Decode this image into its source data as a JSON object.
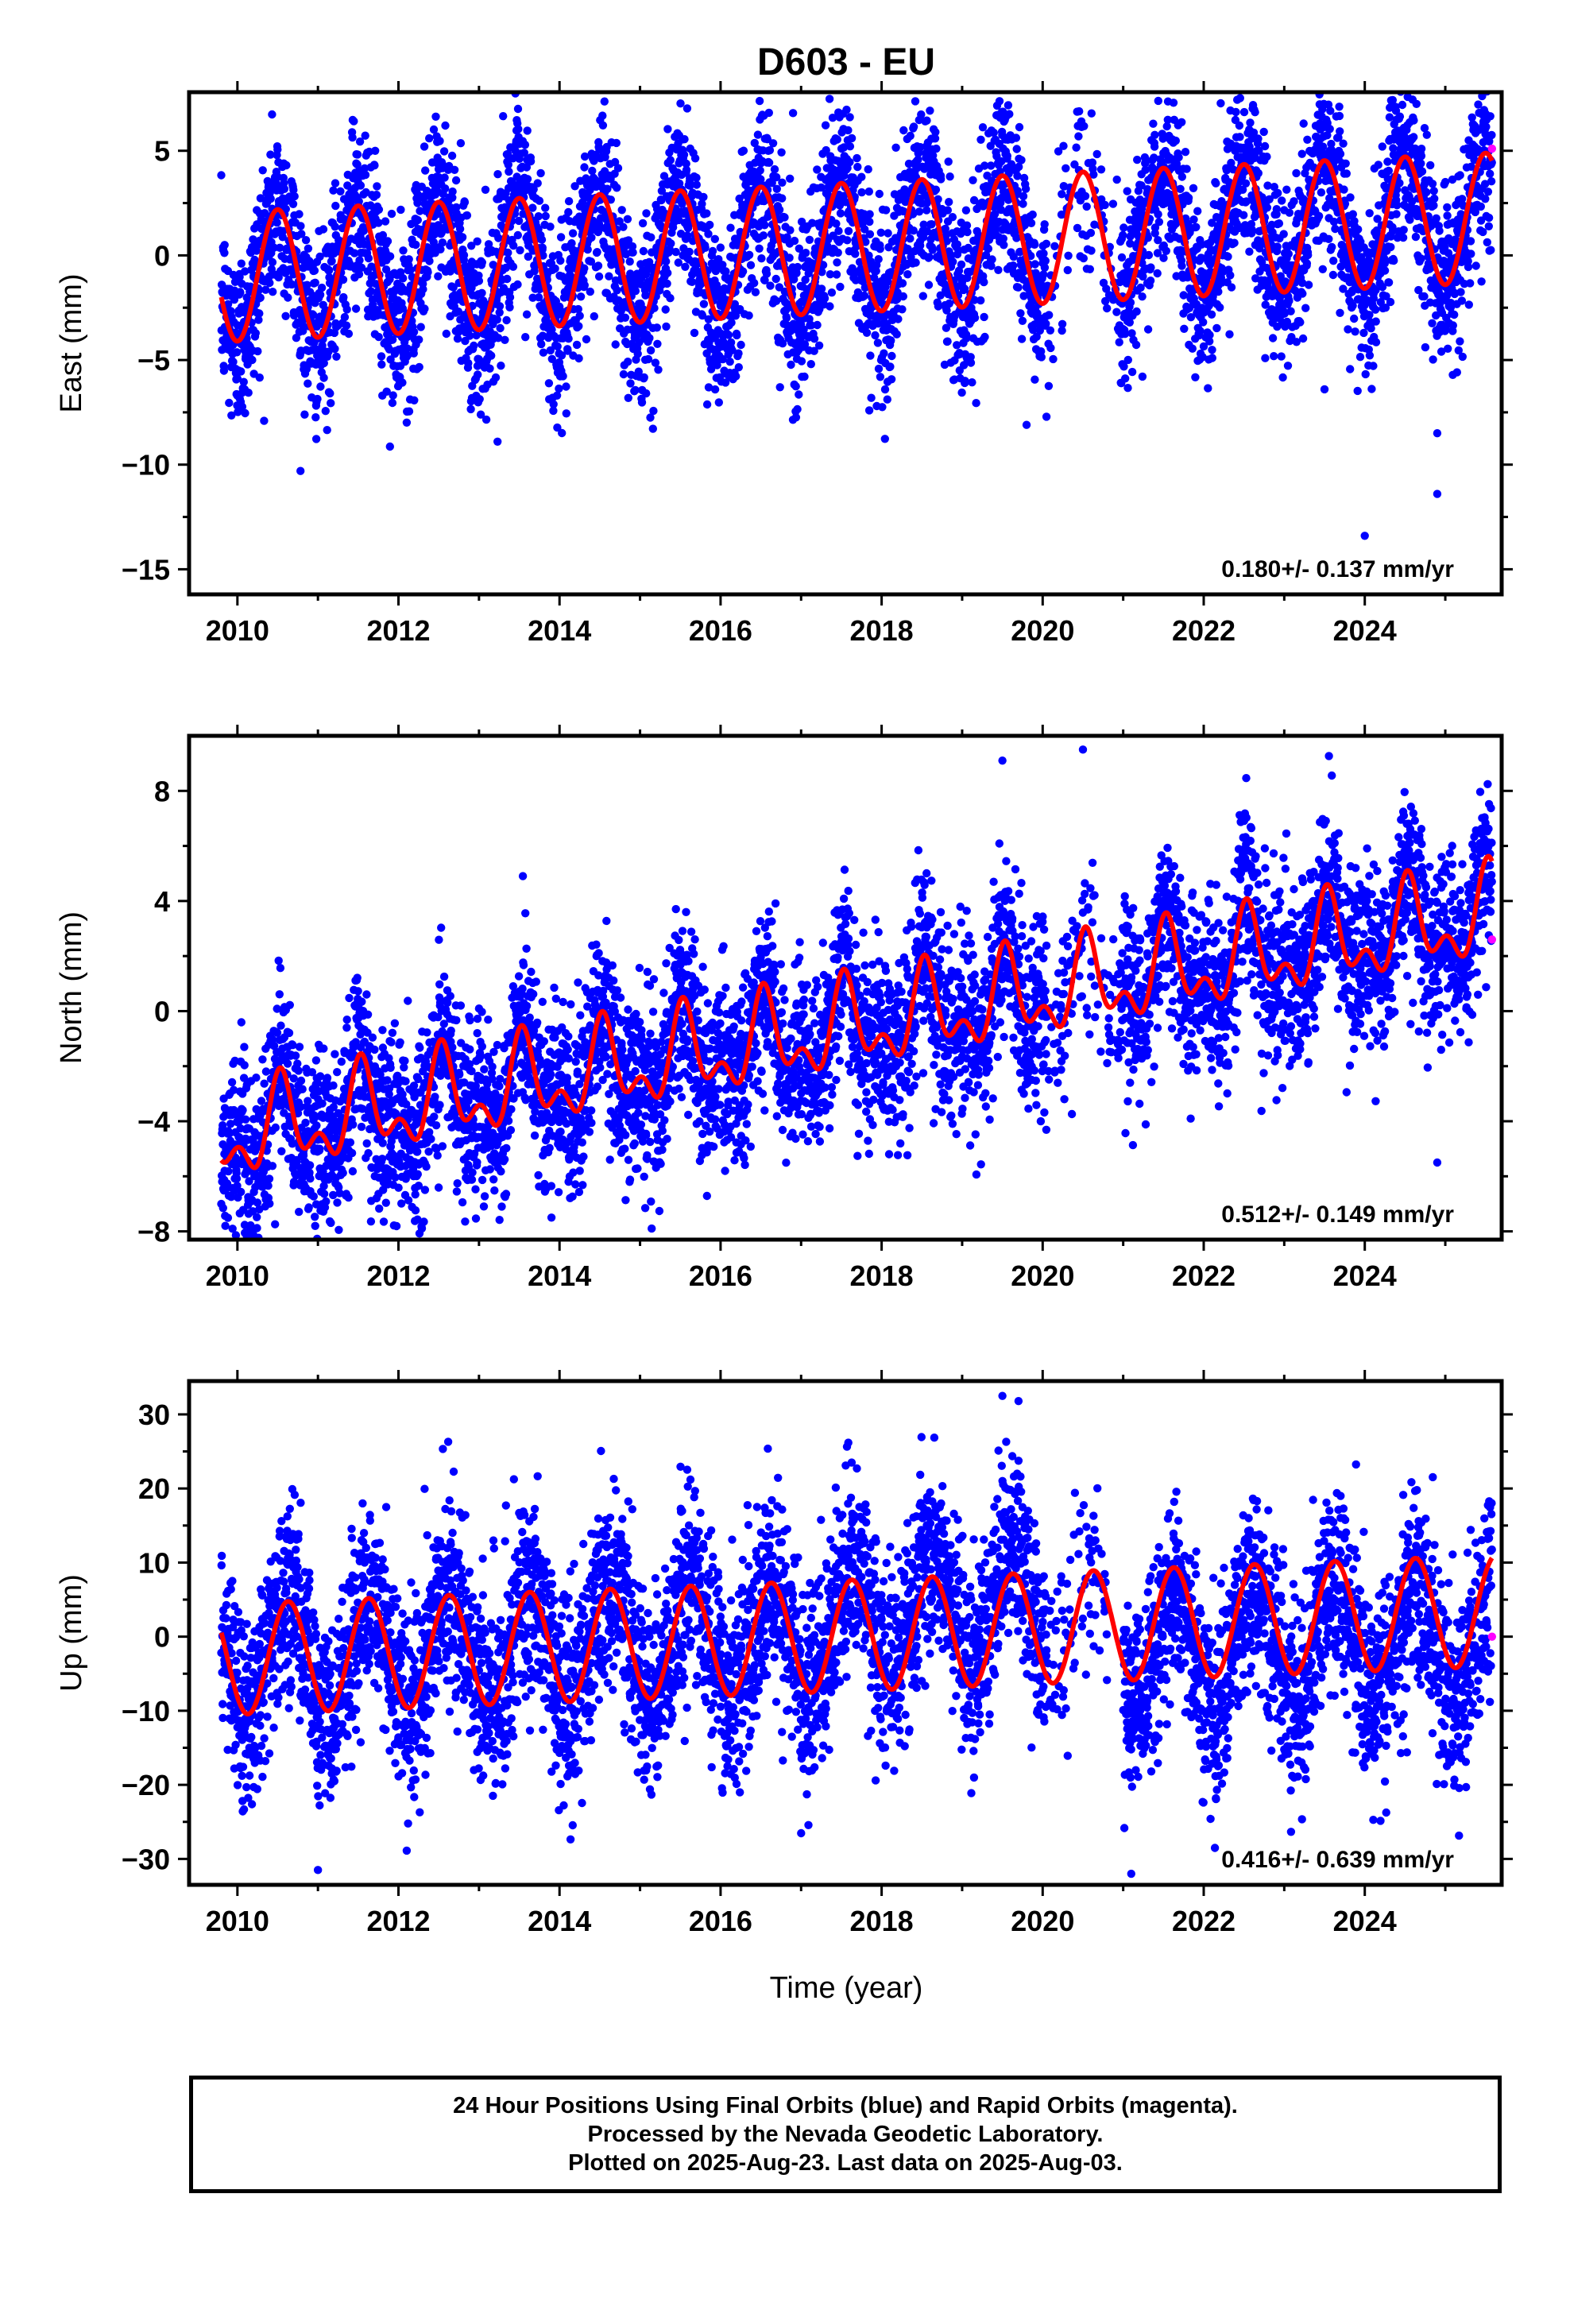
{
  "title": "D603 - EU",
  "xlabel": "Time (year)",
  "colors": {
    "final_orbits": "#0000ff",
    "rapid_orbits": "#ff00ff",
    "model_fit": "#ff0000",
    "axes": "#000000"
  },
  "footer": {
    "line1": "24 Hour Positions Using Final Orbits (blue) and Rapid Orbits (magenta).",
    "line2": "Processed by the Nevada Geodetic Laboratory.",
    "line3": "Plotted on 2025-Aug-23. Last data on 2025-Aug-03."
  },
  "chart_data": [
    {
      "type": "scatter",
      "title": "D603 - EU",
      "ylabel": "East (mm)",
      "xlabel": "",
      "xlim": [
        2009.4,
        2025.7
      ],
      "ylim": [
        -16.2,
        7.8
      ],
      "xticks": [
        "2010",
        "2012",
        "2014",
        "2016",
        "2018",
        "2020",
        "2022",
        "2024"
      ],
      "yticks": [
        "5",
        "0",
        "−5",
        "−10",
        "−15"
      ],
      "ytick_values": [
        5,
        0,
        -5,
        -10,
        -15
      ],
      "velocity_label": "0.180+/- 0.137 mm/yr",
      "grid": false,
      "series": [
        {
          "kind": "final_orbits",
          "note_points": "daily solutions approx 2009.8–2025.6, scatter ±2 mm around seasonal model"
        },
        {
          "kind": "rapid_orbits",
          "points": [
            [
              2025.58,
              5.1
            ]
          ]
        }
      ],
      "model": {
        "trend_mm_per_yr": 0.18,
        "offset_at_2010": -1.0,
        "annual_amplitude": 3.1,
        "start": 2009.8,
        "end": 2025.58
      },
      "outliers": [
        [
          2010.0,
          -6.7
        ],
        [
          2011.8,
          -6.7
        ],
        [
          2016.9,
          6.8
        ],
        [
          2019.8,
          -8.1
        ],
        [
          2023.5,
          -6.4
        ],
        [
          2024.0,
          -13.4
        ],
        [
          2024.9,
          -11.4
        ],
        [
          2024.9,
          -8.5
        ]
      ]
    },
    {
      "type": "scatter",
      "ylabel": "North (mm)",
      "xlabel": "",
      "xlim": [
        2009.4,
        2025.7
      ],
      "ylim": [
        -8.3,
        10.0
      ],
      "xticks": [
        "2010",
        "2012",
        "2014",
        "2016",
        "2018",
        "2020",
        "2022",
        "2024"
      ],
      "yticks": [
        "8",
        "4",
        "0",
        "−4",
        "−8"
      ],
      "ytick_values": [
        8,
        4,
        0,
        -4,
        -8
      ],
      "velocity_label": "0.512+/- 0.149 mm/yr",
      "grid": false,
      "series": [
        {
          "kind": "final_orbits",
          "note_points": "daily solutions approx 2009.8–2025.6 with upward trend and seasonal signal"
        },
        {
          "kind": "rapid_orbits",
          "points": [
            [
              2025.58,
              2.6
            ]
          ]
        }
      ],
      "model": {
        "trend_mm_per_yr": 0.512,
        "offset_at_2010": -4.5,
        "annual_amplitude": 1.9,
        "start": 2009.8,
        "end": 2025.58
      },
      "outliers": [
        [
          2009.85,
          -7.8
        ],
        [
          2013.9,
          -7.5
        ],
        [
          2019.5,
          9.1
        ],
        [
          2020.5,
          9.5
        ],
        [
          2024.9,
          -5.5
        ]
      ]
    },
    {
      "type": "scatter",
      "ylabel": "Up (mm)",
      "xlabel": "Time (year)",
      "xlim": [
        2009.4,
        2025.7
      ],
      "ylim": [
        -33.5,
        34.5
      ],
      "xticks": [
        "2010",
        "2012",
        "2014",
        "2016",
        "2018",
        "2020",
        "2022",
        "2024"
      ],
      "yticks": [
        "30",
        "20",
        "10",
        "0",
        "−10",
        "−20",
        "−30"
      ],
      "ytick_values": [
        30,
        20,
        10,
        0,
        -10,
        -20,
        -30
      ],
      "velocity_label": "0.416+/- 0.639 mm/yr",
      "grid": false,
      "series": [
        {
          "kind": "final_orbits",
          "note_points": "daily solutions approx 2009.8–2025.6, large seasonal scatter"
        },
        {
          "kind": "rapid_orbits",
          "points": [
            [
              2025.58,
              0.0
            ]
          ]
        }
      ],
      "model": {
        "trend_mm_per_yr": 0.416,
        "offset_at_2010": -3.0,
        "annual_amplitude": 7.5,
        "start": 2009.8,
        "end": 2025.58
      },
      "outliers": [
        [
          2011.0,
          -31.5
        ],
        [
          2019.5,
          32.5
        ],
        [
          2019.7,
          31.8
        ],
        [
          2021.1,
          -32.0
        ],
        [
          2023.7,
          19.0
        ]
      ]
    }
  ]
}
